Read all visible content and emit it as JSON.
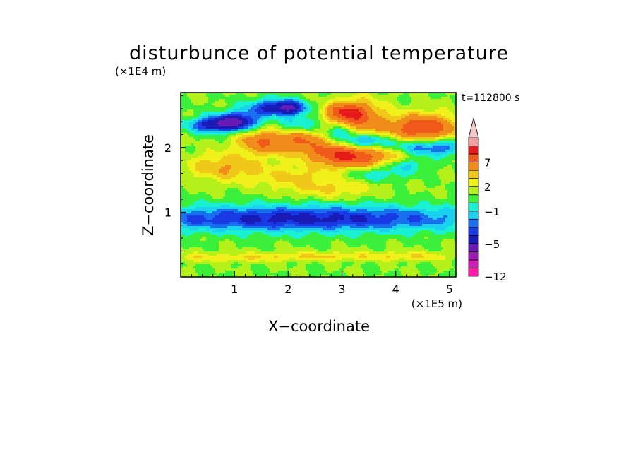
{
  "chart_data": {
    "type": "heatmap",
    "title": "disturbunce of potential temperature",
    "xlabel": "X−coordinate",
    "ylabel": "Z−coordinate",
    "x_unit": "(×1E5 m)",
    "y_unit": "(×1E4 m)",
    "time_label": "t=112800 s",
    "xlim": [
      0,
      5.12
    ],
    "ylim": [
      0,
      2.85
    ],
    "x_ticks": [
      1,
      2,
      3,
      4,
      5
    ],
    "y_ticks": [
      1,
      2
    ],
    "colorbar": {
      "levels": [
        -12,
        -11,
        -9,
        -7,
        -5,
        -4,
        -3,
        -2,
        -1,
        0,
        1,
        2,
        3,
        5,
        7,
        9,
        11
      ],
      "colors": [
        "#ff1aa8",
        "#d41ab4",
        "#9c1ab4",
        "#6a1ab4",
        "#1a1ab4",
        "#1a3ae6",
        "#1a6ef0",
        "#1ad2f0",
        "#1af0d2",
        "#3af03a",
        "#b4f01a",
        "#f0f01a",
        "#f0c81a",
        "#f08c1a",
        "#f05a1a",
        "#e61a1a",
        "#f0a0a0",
        "#f0c8c8"
      ],
      "tick_labels": [
        {
          "level": -12,
          "label": "−12"
        },
        {
          "level": -5,
          "label": "−5"
        },
        {
          "level": -1,
          "label": "−1"
        },
        {
          "level": 2,
          "label": "2"
        },
        {
          "level": 7,
          "label": "7"
        }
      ]
    },
    "features": [
      {
        "x": 0.35,
        "z": 0.3,
        "sx": 0.5,
        "sz": 0.05,
        "value": 1.5
      },
      {
        "x": 1.4,
        "z": 0.3,
        "sx": 0.5,
        "sz": 0.05,
        "value": 1.5
      },
      {
        "x": 2.6,
        "z": 0.32,
        "sx": 0.6,
        "sz": 0.05,
        "value": 2
      },
      {
        "x": 4.2,
        "z": 0.32,
        "sx": 0.6,
        "sz": 0.05,
        "value": 2
      },
      {
        "x": 2.2,
        "z": 0.9,
        "sx": 2.5,
        "sz": 0.14,
        "value": -5.5
      },
      {
        "x": 0.8,
        "z": 1.7,
        "sx": 0.5,
        "sz": 0.15,
        "value": 3
      },
      {
        "x": 2.1,
        "z": 1.55,
        "sx": 0.6,
        "sz": 0.12,
        "value": 2
      },
      {
        "x": 3.5,
        "z": 1.6,
        "sx": 0.6,
        "sz": 0.12,
        "value": 2
      },
      {
        "x": 1.55,
        "z": 2.1,
        "sx": 0.35,
        "sz": 0.14,
        "value": 5
      },
      {
        "x": 2.3,
        "z": 2.15,
        "sx": 0.25,
        "sz": 0.12,
        "value": 4
      },
      {
        "x": 3.25,
        "z": 2.45,
        "sx": 0.35,
        "sz": 0.2,
        "value": 5.5
      },
      {
        "x": 2.7,
        "z": 1.95,
        "sx": 0.5,
        "sz": 0.12,
        "value": 3
      },
      {
        "x": 3.1,
        "z": 1.85,
        "sx": 0.4,
        "sz": 0.12,
        "value": 5
      },
      {
        "x": 3.9,
        "z": 1.85,
        "sx": 0.5,
        "sz": 0.12,
        "value": 3
      },
      {
        "x": 4.5,
        "z": 2.3,
        "sx": 0.45,
        "sz": 0.15,
        "value": 7
      },
      {
        "x": 1.85,
        "z": 2.5,
        "sx": 0.35,
        "sz": 0.08,
        "value": 2
      },
      {
        "x": 0.55,
        "z": 2.35,
        "sx": 0.3,
        "sz": 0.08,
        "value": -5
      },
      {
        "x": 1.05,
        "z": 2.4,
        "sx": 0.3,
        "sz": 0.1,
        "value": -7
      },
      {
        "x": 1.75,
        "z": 2.6,
        "sx": 0.35,
        "sz": 0.1,
        "value": -6
      },
      {
        "x": 2.25,
        "z": 2.35,
        "sx": 0.3,
        "sz": 0.1,
        "value": -3
      },
      {
        "x": 3.0,
        "z": 2.25,
        "sx": 0.2,
        "sz": 0.08,
        "value": -4
      },
      {
        "x": 3.4,
        "z": 2.1,
        "sx": 0.3,
        "sz": 0.08,
        "value": -5
      },
      {
        "x": 3.6,
        "z": 1.6,
        "sx": 0.5,
        "sz": 0.1,
        "value": -4
      },
      {
        "x": 4.6,
        "z": 2.0,
        "sx": 0.5,
        "sz": 0.1,
        "value": -5
      },
      {
        "x": 4.2,
        "z": 1.75,
        "sx": 0.3,
        "sz": 0.08,
        "value": -3
      },
      {
        "x": 2.05,
        "z": 2.6,
        "sx": 0.2,
        "sz": 0.08,
        "value": -4
      },
      {
        "x": 3.05,
        "z": 2.55,
        "sx": 0.25,
        "sz": 0.08,
        "value": 4
      },
      {
        "x": 2.8,
        "z": 1.35,
        "sx": 0.6,
        "sz": 0.1,
        "value": 1.8
      }
    ]
  }
}
